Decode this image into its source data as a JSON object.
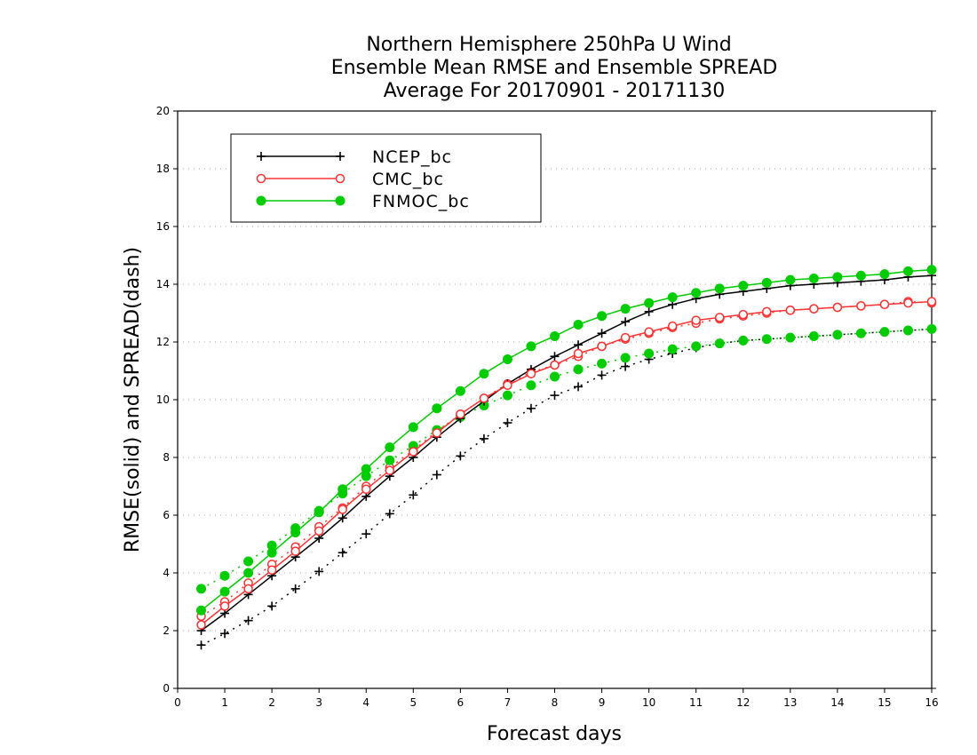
{
  "chart_data": {
    "type": "line",
    "title": [
      "Northern Hemisphere 250hPa U Wind",
      "Ensemble Mean RMSE and Ensemble SPREAD",
      "Average For 20170901 - 20171130"
    ],
    "xlabel": "Forecast days",
    "ylabel": "RMSE(solid) and SPREAD(dash)",
    "xlim": [
      0,
      16
    ],
    "ylim": [
      0,
      20
    ],
    "xticks": [
      "0",
      "1",
      "2",
      "3",
      "4",
      "5",
      "6",
      "7",
      "8",
      "9",
      "10",
      "11",
      "12",
      "13",
      "14",
      "15",
      "16"
    ],
    "yticks": [
      "0",
      "2",
      "4",
      "6",
      "8",
      "10",
      "12",
      "14",
      "16",
      "18",
      "20"
    ],
    "grid": true,
    "legend_position": "top-left",
    "x": [
      0.5,
      1,
      1.5,
      2,
      2.5,
      3,
      3.5,
      4,
      4.5,
      5,
      5.5,
      6,
      6.5,
      7,
      7.5,
      8,
      8.5,
      9,
      9.5,
      10,
      10.5,
      11,
      11.5,
      12,
      12.5,
      13,
      13.5,
      14,
      14.5,
      15,
      15.5,
      16
    ],
    "series": [
      {
        "name": "NCEP_bc",
        "color": "#000000",
        "marker": "plus",
        "rmse": [
          2.0,
          2.6,
          3.25,
          3.9,
          4.55,
          5.2,
          5.9,
          6.65,
          7.35,
          8.0,
          8.7,
          9.35,
          9.95,
          10.55,
          11.05,
          11.5,
          11.9,
          12.3,
          12.7,
          13.05,
          13.3,
          13.5,
          13.65,
          13.75,
          13.85,
          13.95,
          14.0,
          14.05,
          14.1,
          14.15,
          14.25,
          14.3
        ],
        "spread": [
          1.5,
          1.9,
          2.35,
          2.85,
          3.45,
          4.05,
          4.7,
          5.35,
          6.05,
          6.7,
          7.4,
          8.05,
          8.65,
          9.2,
          9.7,
          10.15,
          10.45,
          10.85,
          11.15,
          11.4,
          11.6,
          11.8,
          11.95,
          12.05,
          12.1,
          12.15,
          12.2,
          12.25,
          12.3,
          12.35,
          12.4,
          12.45
        ]
      },
      {
        "name": "CMC_bc",
        "color": "#ff3333",
        "marker": "open-circle",
        "rmse": [
          2.2,
          2.85,
          3.45,
          4.1,
          4.75,
          5.45,
          6.2,
          6.9,
          7.55,
          8.2,
          8.85,
          9.5,
          10.05,
          10.5,
          10.9,
          11.2,
          11.6,
          11.85,
          12.15,
          12.35,
          12.55,
          12.75,
          12.85,
          12.95,
          13.05,
          13.1,
          13.15,
          13.2,
          13.25,
          13.3,
          13.35,
          13.4
        ],
        "spread": [
          2.5,
          3.0,
          3.65,
          4.3,
          4.9,
          5.6,
          6.25,
          7.0,
          7.65,
          8.25,
          8.9,
          9.5,
          10.05,
          10.55,
          10.95,
          11.2,
          11.5,
          11.85,
          12.1,
          12.3,
          12.5,
          12.65,
          12.8,
          12.9,
          13.0,
          13.1,
          13.15,
          13.2,
          13.25,
          13.3,
          13.4,
          13.35
        ]
      },
      {
        "name": "FNMOC_bc",
        "color": "#00cc00",
        "marker": "filled-circle",
        "rmse": [
          2.7,
          3.35,
          4.0,
          4.7,
          5.4,
          6.1,
          6.9,
          7.6,
          8.35,
          9.05,
          9.7,
          10.3,
          10.9,
          11.4,
          11.85,
          12.2,
          12.6,
          12.9,
          13.15,
          13.35,
          13.55,
          13.7,
          13.85,
          13.95,
          14.05,
          14.15,
          14.2,
          14.25,
          14.3,
          14.35,
          14.45,
          14.5
        ],
        "spread": [
          3.45,
          3.9,
          4.4,
          4.95,
          5.55,
          6.15,
          6.75,
          7.35,
          7.9,
          8.4,
          8.95,
          9.4,
          9.8,
          10.15,
          10.5,
          10.8,
          11.05,
          11.25,
          11.45,
          11.6,
          11.75,
          11.85,
          11.95,
          12.05,
          12.1,
          12.15,
          12.2,
          12.25,
          12.3,
          12.35,
          12.4,
          12.45
        ]
      }
    ]
  }
}
